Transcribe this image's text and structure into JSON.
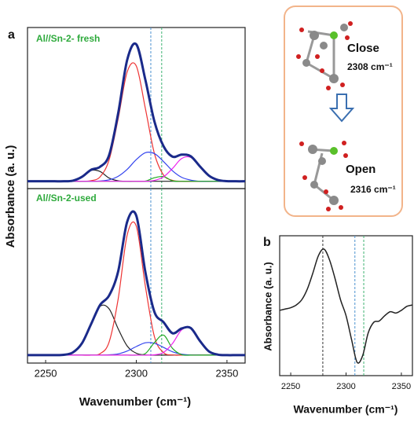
{
  "chart_data": [
    {
      "type": "line",
      "label": "a",
      "title": "Al//Sn-2- fresh",
      "y_label": "Absorbance (a. u.)",
      "x": [
        2240,
        2245,
        2250,
        2255,
        2260,
        2265,
        2270,
        2275,
        2280,
        2285,
        2290,
        2295,
        2300,
        2305,
        2310,
        2315,
        2320,
        2325,
        2330,
        2335,
        2340,
        2345,
        2350,
        2355,
        2360
      ],
      "xlim": [
        2240,
        2360
      ],
      "ylim": [
        -0.05,
        1.05
      ],
      "vlines": [
        {
          "x": 2308,
          "color": "#4a90d0"
        },
        {
          "x": 2314,
          "color": "#3cb371"
        }
      ],
      "series": [
        {
          "color": "#222222",
          "values": [
            0,
            0,
            0,
            0,
            0,
            0.004,
            0.03,
            0.074,
            0.067,
            0.022,
            0.003,
            0,
            0,
            0,
            0,
            0,
            0,
            0,
            0,
            0,
            0,
            0,
            0,
            0,
            0
          ]
        },
        {
          "color": "#ee3333",
          "values": [
            0,
            0,
            0,
            0,
            0,
            0,
            0,
            0.004,
            0.03,
            0.146,
            0.427,
            0.748,
            0.787,
            0.497,
            0.189,
            0.043,
            0.006,
            0,
            0,
            0,
            0,
            0,
            0,
            0,
            0
          ]
        },
        {
          "color": "#3344ee",
          "values": [
            0,
            0,
            0,
            0,
            0,
            0,
            0,
            0,
            0.002,
            0.01,
            0.034,
            0.082,
            0.148,
            0.195,
            0.189,
            0.135,
            0.071,
            0.027,
            0.008,
            0,
            0,
            0,
            0,
            0,
            0
          ]
        },
        {
          "color": "#22aa22",
          "values": [
            0,
            0,
            0,
            0,
            0,
            0,
            0,
            0,
            0,
            0,
            0,
            0,
            0,
            0.001,
            0.024,
            0.032,
            0.003,
            0,
            0,
            0,
            0,
            0,
            0,
            0,
            0
          ]
        },
        {
          "color": "#ee22ee",
          "values": [
            0,
            0,
            0,
            0,
            0,
            0,
            0,
            0,
            0,
            0,
            0,
            0,
            0,
            0,
            0.006,
            0.03,
            0.088,
            0.155,
            0.163,
            0.103,
            0.039,
            0.009,
            0.001,
            0,
            0
          ]
        },
        {
          "color": "#1a2a8a",
          "values": [
            0,
            0,
            0,
            0,
            0,
            0.004,
            0.03,
            0.078,
            0.099,
            0.178,
            0.464,
            0.83,
            0.935,
            0.693,
            0.408,
            0.24,
            0.168,
            0.182,
            0.171,
            0.103,
            0.039,
            0.009,
            0.001,
            0,
            0
          ]
        }
      ]
    },
    {
      "type": "line",
      "title": "Al//Sn-2-used",
      "x_label": "Wavenumber (cm⁻¹)",
      "x": [
        2240,
        2245,
        2250,
        2255,
        2260,
        2265,
        2270,
        2275,
        2280,
        2285,
        2290,
        2295,
        2300,
        2305,
        2310,
        2315,
        2320,
        2325,
        2330,
        2335,
        2340,
        2345,
        2350,
        2355,
        2360
      ],
      "xlim": [
        2240,
        2360
      ],
      "ylim": [
        -0.05,
        1.05
      ],
      "xticks": [
        2250,
        2300,
        2350
      ],
      "vlines": [
        {
          "x": 2308,
          "color": "#4a90d0"
        },
        {
          "x": 2314,
          "color": "#3cb371"
        }
      ],
      "series": [
        {
          "color": "#222222",
          "values": [
            0,
            0,
            0,
            0,
            0.002,
            0.017,
            0.074,
            0.194,
            0.307,
            0.292,
            0.166,
            0.057,
            0.012,
            0.001,
            0,
            0,
            0,
            0,
            0,
            0,
            0,
            0,
            0,
            0,
            0
          ]
        },
        {
          "color": "#ee3333",
          "values": [
            0,
            0,
            0,
            0,
            0,
            0,
            0,
            0,
            0.009,
            0.082,
            0.354,
            0.759,
            0.813,
            0.435,
            0.116,
            0.016,
            0.001,
            0,
            0,
            0,
            0,
            0,
            0,
            0,
            0
          ]
        },
        {
          "color": "#3344ee",
          "values": [
            0,
            0,
            0,
            0,
            0,
            0,
            0,
            0,
            0,
            0.002,
            0.008,
            0.026,
            0.054,
            0.078,
            0.075,
            0.049,
            0.021,
            0.006,
            0.001,
            0,
            0,
            0,
            0,
            0,
            0
          ]
        },
        {
          "color": "#22aa22",
          "values": [
            0,
            0,
            0,
            0,
            0,
            0,
            0,
            0,
            0,
            0,
            0,
            0,
            0,
            0.01,
            0.079,
            0.126,
            0.042,
            0.003,
            0,
            0,
            0,
            0,
            0,
            0,
            0
          ]
        },
        {
          "color": "#ee22ee",
          "values": [
            0,
            0,
            0,
            0,
            0,
            0,
            0,
            0,
            0,
            0,
            0,
            0,
            0,
            0,
            0.002,
            0.017,
            0.074,
            0.159,
            0.17,
            0.091,
            0.024,
            0.003,
            0,
            0,
            0
          ]
        },
        {
          "color": "#1a2a8a",
          "values": [
            0,
            0,
            0,
            0,
            0.002,
            0.017,
            0.074,
            0.194,
            0.316,
            0.376,
            0.528,
            0.842,
            0.879,
            0.524,
            0.272,
            0.208,
            0.138,
            0.168,
            0.171,
            0.091,
            0.024,
            0.003,
            0,
            0,
            0
          ]
        }
      ]
    },
    {
      "type": "line",
      "label": "b",
      "y_label": "Absorbance (a. u.)",
      "x_label": "Wavenumber (cm⁻¹)",
      "x": [
        2240,
        2245,
        2250,
        2255,
        2260,
        2265,
        2270,
        2275,
        2280,
        2285,
        2290,
        2295,
        2300,
        2305,
        2310,
        2315,
        2320,
        2325,
        2330,
        2335,
        2340,
        2345,
        2350,
        2355,
        2360
      ],
      "xlim": [
        2240,
        2360
      ],
      "ylim": [
        -0.05,
        1.0
      ],
      "xticks": [
        2250,
        2300,
        2350
      ],
      "vlines": [
        {
          "x": 2279,
          "color": "#333333"
        },
        {
          "x": 2308,
          "color": "#4a90d0"
        },
        {
          "x": 2316,
          "color": "#3cb371"
        }
      ],
      "series": [
        {
          "color": "#222222",
          "values": [
            0.44,
            0.45,
            0.46,
            0.48,
            0.52,
            0.6,
            0.72,
            0.85,
            0.9,
            0.82,
            0.68,
            0.52,
            0.4,
            0.22,
            0.05,
            0.1,
            0.27,
            0.35,
            0.36,
            0.4,
            0.43,
            0.42,
            0.44,
            0.47,
            0.48
          ]
        }
      ]
    }
  ],
  "diagram": {
    "close_label": "Close",
    "close_wavenumber": "2308 cm⁻¹",
    "open_label": "Open",
    "open_wavenumber": "2316 cm⁻¹"
  }
}
